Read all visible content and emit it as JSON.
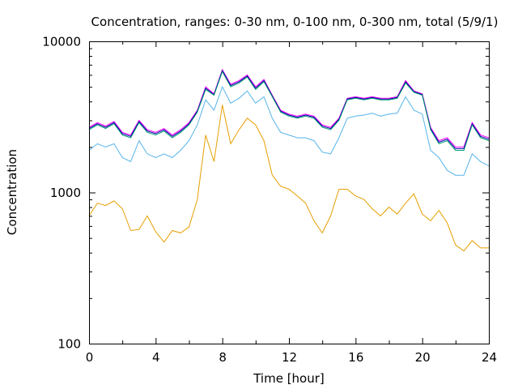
{
  "chart_data": {
    "type": "line",
    "title": "Concentration, ranges: 0-30 nm, 0-100 nm, 0-300 nm, total (5/9/1)",
    "xlabel": "Time [hour]",
    "ylabel": "Concentration",
    "xlim": [
      0,
      24
    ],
    "ylim": [
      100,
      10000
    ],
    "yscale": "log",
    "grid": false,
    "x_ticks": [
      "0",
      "4",
      "8",
      "12",
      "16",
      "20",
      "24"
    ],
    "y_ticks": [
      "100",
      "1000",
      "10000"
    ],
    "x": [
      0,
      0.5,
      1,
      1.5,
      2,
      2.5,
      3,
      3.5,
      4,
      4.5,
      5,
      5.5,
      6,
      6.5,
      7,
      7.5,
      8,
      8.5,
      9,
      9.5,
      10,
      10.5,
      11,
      11.5,
      12,
      12.5,
      13,
      13.5,
      14,
      14.5,
      15,
      15.5,
      16,
      16.5,
      17,
      17.5,
      18,
      18.5,
      19,
      19.5,
      20,
      20.5,
      21,
      21.5,
      22,
      22.5,
      23,
      23.5,
      24
    ],
    "series": [
      {
        "color": "#ff00ff",
        "values": [
          2700,
          2900,
          2750,
          2950,
          2500,
          2400,
          3000,
          2600,
          2500,
          2650,
          2400,
          2600,
          2900,
          3500,
          5000,
          4500,
          6500,
          5200,
          5500,
          6000,
          5000,
          5600,
          4400,
          3500,
          3300,
          3200,
          3300,
          3200,
          2800,
          2700,
          3100,
          4200,
          4300,
          4200,
          4300,
          4200,
          4200,
          4300,
          5500,
          4700,
          4500,
          2700,
          2200,
          2300,
          2000,
          2000,
          2900,
          2400,
          2300
        ]
      },
      {
        "color": "#0000aa",
        "values": [
          2650,
          2850,
          2700,
          2900,
          2450,
          2350,
          2950,
          2550,
          2450,
          2600,
          2350,
          2550,
          2850,
          3450,
          4900,
          4450,
          6400,
          5100,
          5400,
          5900,
          4900,
          5500,
          4350,
          3450,
          3250,
          3150,
          3250,
          3150,
          2750,
          2650,
          3050,
          4150,
          4250,
          4150,
          4250,
          4150,
          4150,
          4250,
          5400,
          4650,
          4450,
          2650,
          2150,
          2250,
          1950,
          1950,
          2850,
          2350,
          2250
        ]
      },
      {
        "color": "#009e73",
        "values": [
          2600,
          2800,
          2650,
          2850,
          2400,
          2300,
          2900,
          2500,
          2400,
          2550,
          2300,
          2500,
          2800,
          3400,
          4800,
          4400,
          6300,
          5000,
          5300,
          5800,
          4800,
          5400,
          4300,
          3400,
          3200,
          3100,
          3200,
          3100,
          2700,
          2600,
          3000,
          4100,
          4200,
          4100,
          4200,
          4100,
          4100,
          4200,
          5300,
          4600,
          4400,
          2600,
          2100,
          2200,
          1900,
          1900,
          2800,
          2300,
          2200
        ]
      },
      {
        "color": "#56b4e9",
        "values": [
          1900,
          2100,
          2000,
          2100,
          1700,
          1600,
          2200,
          1800,
          1700,
          1800,
          1700,
          1900,
          2200,
          2800,
          4100,
          3500,
          5000,
          3900,
          4200,
          4700,
          3900,
          4300,
          3100,
          2500,
          2400,
          2300,
          2300,
          2200,
          1850,
          1800,
          2300,
          3100,
          3200,
          3250,
          3350,
          3200,
          3300,
          3350,
          4300,
          3500,
          3300,
          1900,
          1700,
          1400,
          1300,
          1300,
          1800,
          1600,
          1500
        ]
      },
      {
        "color": "#e69f00",
        "values": [
          700,
          850,
          820,
          880,
          780,
          560,
          570,
          700,
          550,
          470,
          560,
          540,
          590,
          900,
          2400,
          1600,
          3800,
          2100,
          2600,
          3100,
          2800,
          2200,
          1300,
          1100,
          1050,
          950,
          850,
          650,
          540,
          700,
          1050,
          1050,
          950,
          900,
          780,
          700,
          800,
          720,
          850,
          980,
          720,
          650,
          760,
          630,
          450,
          410,
          480,
          430,
          430
        ]
      }
    ]
  }
}
